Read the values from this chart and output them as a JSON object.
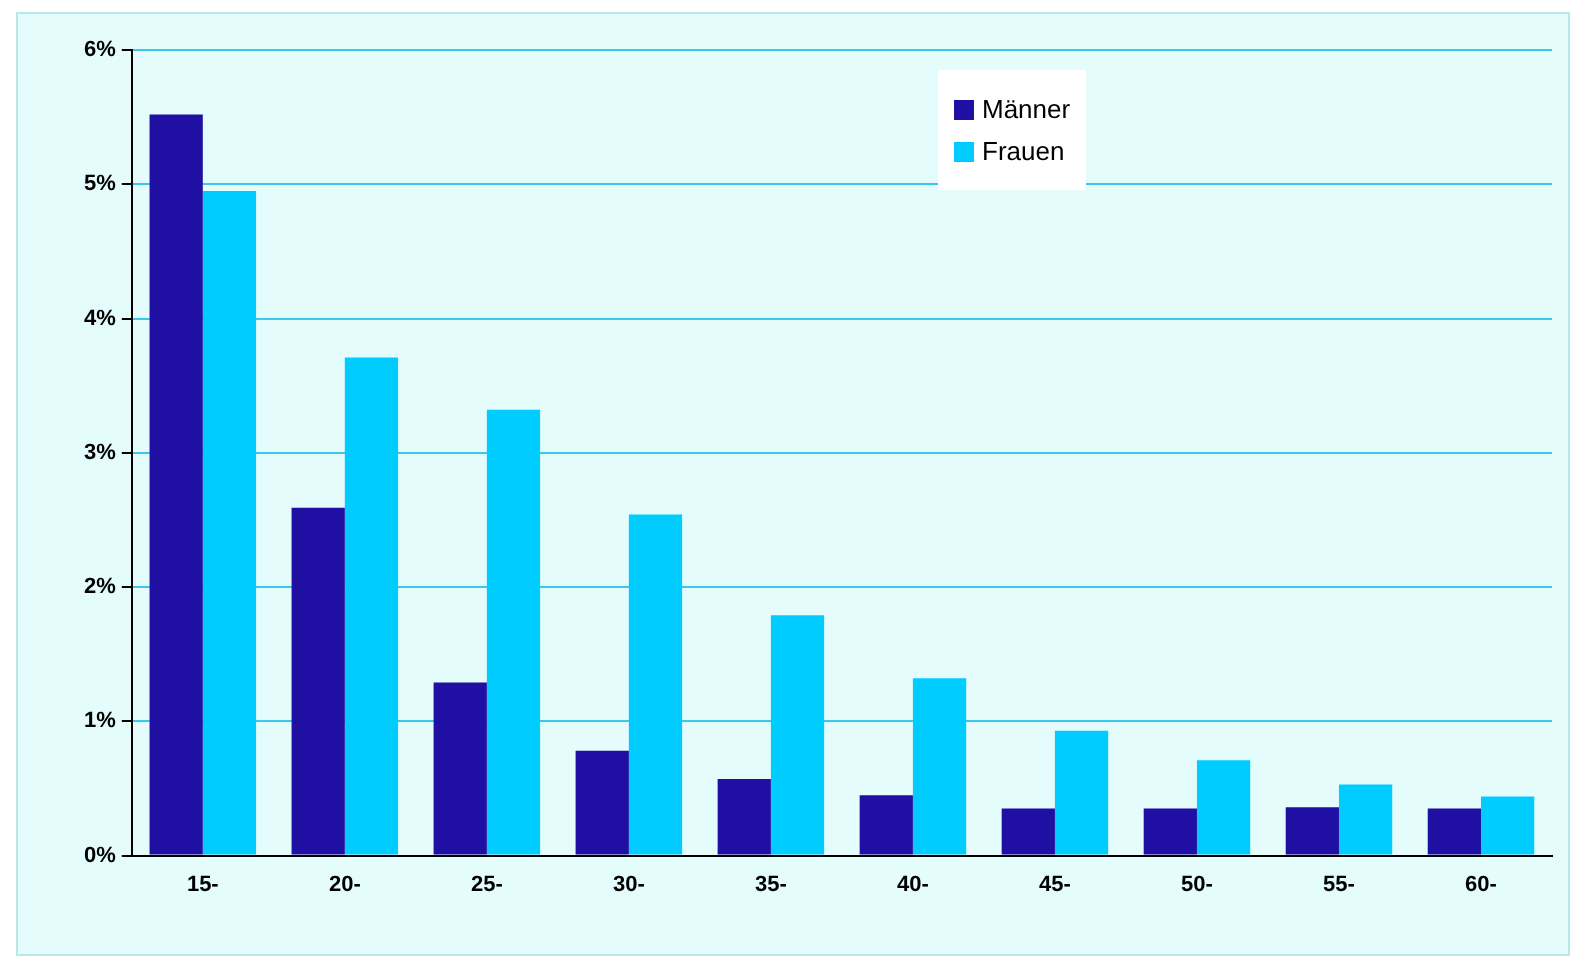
{
  "chart_data": {
    "type": "bar",
    "categories": [
      "15-",
      "20-",
      "25-",
      "30-",
      "35-",
      "40-",
      "45-",
      "50-",
      "55-",
      "60-"
    ],
    "series": [
      {
        "name": "Männer",
        "color": "#1f0fa3",
        "values": [
          5.52,
          2.59,
          1.29,
          0.78,
          0.57,
          0.45,
          0.35,
          0.35,
          0.36,
          0.35
        ]
      },
      {
        "name": "Frauen",
        "color": "#00ccff",
        "values": [
          4.95,
          3.71,
          3.32,
          2.54,
          1.79,
          1.32,
          0.93,
          0.71,
          0.53,
          0.44
        ]
      }
    ],
    "ylim": [
      0,
      6
    ],
    "yticks": [
      {
        "value": 0,
        "label": "0%"
      },
      {
        "value": 1,
        "label": "1%"
      },
      {
        "value": 2,
        "label": "2%"
      },
      {
        "value": 3,
        "label": "3%"
      },
      {
        "value": 4,
        "label": "4%"
      },
      {
        "value": 5,
        "label": "5%"
      },
      {
        "value": 6,
        "label": "6%"
      }
    ],
    "grid": "y",
    "legend": "top right"
  }
}
